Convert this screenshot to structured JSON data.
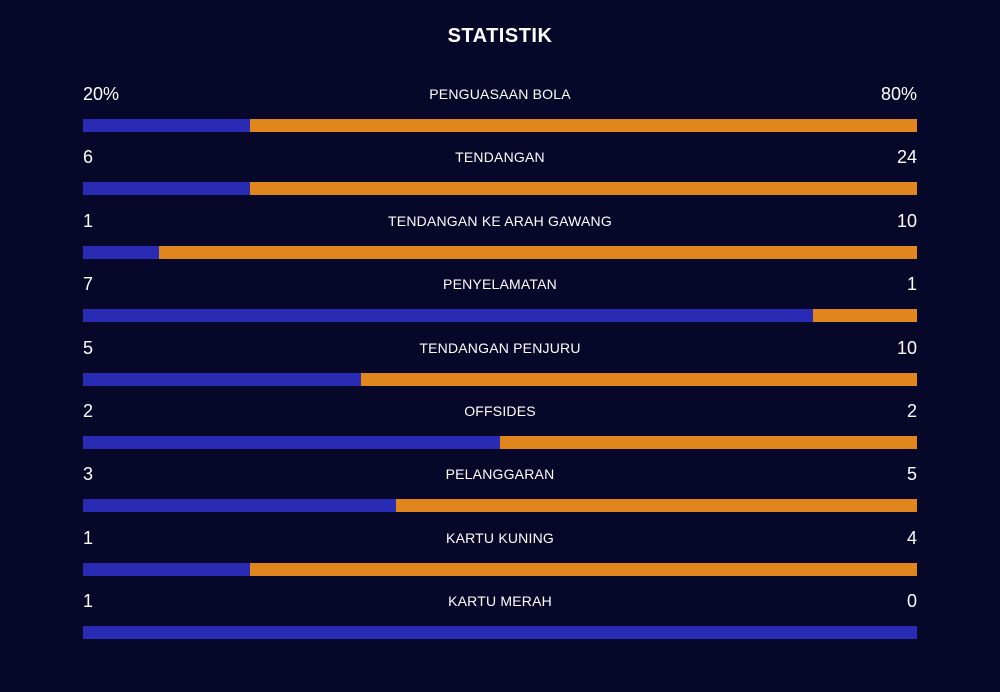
{
  "header": {
    "title": "STATISTIK"
  },
  "colors": {
    "background": "#07072a",
    "home": "#2a2bb4",
    "away": "#e0861c"
  },
  "stats": [
    {
      "label": "PENGUASAAN BOLA",
      "home": "20%",
      "away": "80%",
      "home_share": 0.2
    },
    {
      "label": "TENDANGAN",
      "home": "6",
      "away": "24",
      "home_share": 0.2
    },
    {
      "label": "TENDANGAN KE ARAH GAWANG",
      "home": "1",
      "away": "10",
      "home_share": 0.0909
    },
    {
      "label": "PENYELAMATAN",
      "home": "7",
      "away": "1",
      "home_share": 0.875
    },
    {
      "label": "TENDANGAN PENJURU",
      "home": "5",
      "away": "10",
      "home_share": 0.3333
    },
    {
      "label": "OFFSIDES",
      "home": "2",
      "away": "2",
      "home_share": 0.5
    },
    {
      "label": "PELANGGARAN",
      "home": "3",
      "away": "5",
      "home_share": 0.375
    },
    {
      "label": "KARTU KUNING",
      "home": "1",
      "away": "4",
      "home_share": 0.2
    },
    {
      "label": "KARTU MERAH",
      "home": "1",
      "away": "0",
      "home_share": 1.0
    }
  ]
}
